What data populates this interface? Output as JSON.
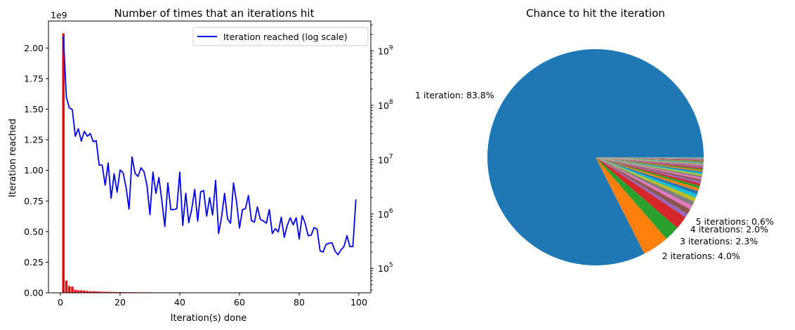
{
  "chart_data": [
    {
      "type": "bar+line",
      "title": "Number of times that an iterations hit",
      "xlabel": "Iteration(s) done",
      "ylabel": "Iteration reached",
      "y_offset_label": "1e9",
      "xlim": [
        -4,
        104
      ],
      "ylim": [
        0,
        2.22
      ],
      "xticks": [
        "0",
        "20",
        "40",
        "60",
        "80",
        "100"
      ],
      "xtick_values": [
        0,
        20,
        40,
        60,
        80,
        100
      ],
      "yticks": [
        "0.00",
        "0.25",
        "0.50",
        "0.75",
        "1.00",
        "1.25",
        "1.50",
        "1.75",
        "2.00"
      ],
      "ytick_values": [
        0,
        0.25,
        0.5,
        0.75,
        1.0,
        1.25,
        1.5,
        1.75,
        2.0
      ],
      "right_axis": {
        "scale": "log",
        "ylim_log10": [
          4.55,
          9.55
        ],
        "ticks": [
          {
            "base": "10",
            "exp": "5",
            "log": 5
          },
          {
            "base": "10",
            "exp": "6",
            "log": 6
          },
          {
            "base": "10",
            "exp": "7",
            "log": 7
          },
          {
            "base": "10",
            "exp": "8",
            "log": 8
          },
          {
            "base": "10",
            "exp": "9",
            "log": 9
          }
        ]
      },
      "legend": {
        "placement": "top-right",
        "label": "Iteration reached (log scale)",
        "color": "#0000ee"
      },
      "bars": {
        "color": "#ee0000",
        "x": [
          1,
          2,
          3,
          4,
          5,
          6,
          7,
          8,
          9,
          10,
          11,
          12,
          13,
          14,
          15,
          16,
          17,
          18,
          19,
          20,
          21,
          22,
          23,
          24,
          25,
          26,
          27,
          28,
          29,
          30,
          31,
          32,
          33,
          34,
          35,
          36,
          37,
          38,
          39,
          40
        ],
        "values": [
          2.12,
          0.1,
          0.055,
          0.05,
          0.025,
          0.02,
          0.02,
          0.018,
          0.015,
          0.013,
          0.012,
          0.011,
          0.01,
          0.009,
          0.008,
          0.008,
          0.007,
          0.007,
          0.006,
          0.006,
          0.006,
          0.005,
          0.005,
          0.005,
          0.005,
          0.004,
          0.004,
          0.004,
          0.004,
          0.004,
          0.003,
          0.003,
          0.003,
          0.003,
          0.003,
          0.003,
          0.003,
          0.003,
          0.003,
          0.003
        ]
      },
      "line": {
        "name": "Iteration reached (log scale)",
        "color": "#0000ee",
        "x": [
          1,
          2,
          3,
          4,
          5,
          6,
          7,
          8,
          9,
          10,
          11,
          12,
          13,
          14,
          15,
          16,
          17,
          18,
          19,
          20,
          21,
          22,
          23,
          24,
          25,
          26,
          27,
          28,
          29,
          30,
          31,
          32,
          33,
          34,
          35,
          36,
          37,
          38,
          39,
          40,
          41,
          42,
          43,
          44,
          45,
          46,
          47,
          48,
          49,
          50,
          51,
          52,
          53,
          54,
          55,
          56,
          57,
          58,
          59,
          60,
          61,
          62,
          63,
          64,
          65,
          66,
          67,
          68,
          69,
          70,
          71,
          72,
          73,
          74,
          75,
          76,
          77,
          78,
          79,
          80,
          81,
          82,
          83,
          84,
          85,
          86,
          87,
          88,
          89,
          90,
          91,
          92,
          93,
          94,
          95,
          96,
          97,
          98,
          99
        ],
        "log10_values": [
          9.27,
          8.15,
          7.95,
          7.92,
          7.43,
          7.57,
          7.34,
          7.52,
          7.43,
          7.48,
          7.33,
          7.35,
          6.9,
          6.9,
          6.53,
          6.94,
          6.29,
          6.74,
          6.4,
          6.81,
          6.76,
          6.49,
          6.09,
          7.05,
          6.75,
          6.69,
          6.85,
          6.78,
          6.53,
          5.99,
          6.77,
          6.38,
          6.67,
          6.24,
          5.77,
          6.57,
          6.08,
          6.08,
          6.1,
          6.77,
          5.79,
          6.38,
          5.84,
          6.09,
          6.45,
          5.87,
          6.41,
          6.43,
          5.96,
          6.3,
          5.98,
          6.62,
          5.64,
          5.94,
          6.38,
          5.91,
          5.83,
          6.57,
          6.23,
          5.74,
          6.08,
          6.1,
          6.34,
          5.88,
          5.85,
          6.13,
          5.9,
          5.87,
          5.83,
          6.08,
          5.64,
          5.73,
          5.67,
          5.94,
          5.57,
          5.79,
          5.93,
          5.8,
          5.93,
          5.54,
          5.97,
          5.83,
          5.6,
          5.61,
          5.75,
          5.72,
          5.32,
          5.3,
          5.44,
          5.46,
          5.47,
          5.32,
          5.25,
          5.34,
          5.4,
          5.6,
          5.4,
          5.4,
          6.27
        ]
      }
    },
    {
      "type": "pie",
      "title": "Chance to hit the iteration",
      "slices": [
        {
          "label": "1 iteration: 83.8%",
          "value": 83.8,
          "color": "#1f77b4"
        },
        {
          "label": "2 iterations: 4.0%",
          "value": 4.0,
          "color": "#ff7f0e"
        },
        {
          "label": "3 iterations: 2.3%",
          "value": 2.3,
          "color": "#2ca02c"
        },
        {
          "label": "4 iterations: 2.0%",
          "value": 2.0,
          "color": "#d62728"
        },
        {
          "label": "5 iterations: 0.6%",
          "value": 0.6,
          "color": "#9467bd"
        },
        {
          "label": "",
          "value": 0.8,
          "color": "#8c564b"
        },
        {
          "label": "",
          "value": 0.6,
          "color": "#e377c2"
        },
        {
          "label": "",
          "value": 0.7,
          "color": "#7f7f7f"
        },
        {
          "label": "",
          "value": 0.6,
          "color": "#bcbd22"
        },
        {
          "label": "",
          "value": 0.55,
          "color": "#17becf"
        },
        {
          "label": "",
          "value": 0.5,
          "color": "#1f77b4"
        },
        {
          "label": "",
          "value": 0.45,
          "color": "#ff7f0e"
        },
        {
          "label": "",
          "value": 0.4,
          "color": "#2ca02c"
        },
        {
          "label": "",
          "value": 0.35,
          "color": "#d62728"
        },
        {
          "label": "",
          "value": 0.32,
          "color": "#9467bd"
        },
        {
          "label": "",
          "value": 0.3,
          "color": "#8c564b"
        },
        {
          "label": "",
          "value": 0.28,
          "color": "#e377c2"
        },
        {
          "label": "",
          "value": 0.26,
          "color": "#7f7f7f"
        },
        {
          "label": "",
          "value": 0.24,
          "color": "#bcbd22"
        },
        {
          "label": "",
          "value": 0.22,
          "color": "#17becf"
        },
        {
          "label": "",
          "value": 0.2,
          "color": "#1f77b4"
        },
        {
          "label": "",
          "value": 0.19,
          "color": "#ff7f0e"
        },
        {
          "label": "",
          "value": 0.18,
          "color": "#2ca02c"
        },
        {
          "label": "",
          "value": 0.17,
          "color": "#d62728"
        },
        {
          "label": "",
          "value": 0.16,
          "color": "#9467bd"
        },
        {
          "label": "",
          "value": 0.15,
          "color": "#8c564b"
        },
        {
          "label": "",
          "value": 0.14,
          "color": "#e377c2"
        },
        {
          "label": "",
          "value": 0.13,
          "color": "#7f7f7f"
        },
        {
          "label": "",
          "value": 0.12,
          "color": "#bcbd22"
        },
        {
          "label": "",
          "value": 0.11,
          "color": "#17becf"
        },
        {
          "label": "",
          "value": 0.1,
          "color": "#1f77b4"
        },
        {
          "label": "",
          "value": 0.1,
          "color": "#ff7f0e"
        },
        {
          "label": "",
          "value": 0.09,
          "color": "#2ca02c"
        },
        {
          "label": "",
          "value": 0.09,
          "color": "#d62728"
        },
        {
          "label": "",
          "value": 0.08,
          "color": "#9467bd"
        },
        {
          "label": "",
          "value": 0.08,
          "color": "#8c564b"
        },
        {
          "label": "",
          "value": 0.07,
          "color": "#e377c2"
        },
        {
          "label": "",
          "value": 0.07,
          "color": "#7f7f7f"
        },
        {
          "label": "",
          "value": 0.06,
          "color": "#bcbd22"
        },
        {
          "label": "",
          "value": 0.06,
          "color": "#17becf"
        }
      ]
    }
  ]
}
